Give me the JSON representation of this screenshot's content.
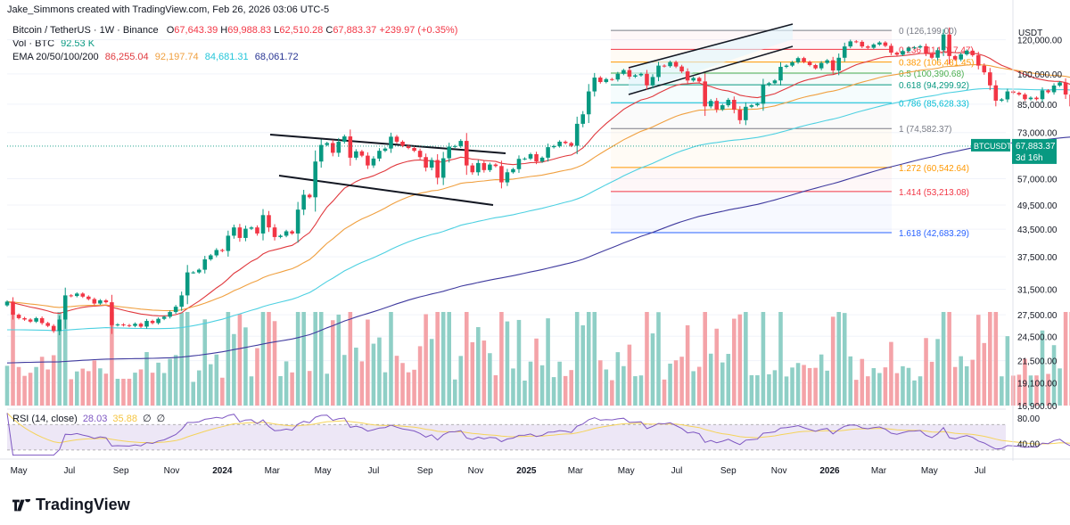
{
  "header": {
    "published_by": "Jake_Simmons created with TradingView.com, Feb 26, 2026 03:06 UTC-5"
  },
  "legend": {
    "symbol_line": "Bitcoin / TetherUS · 1W · Binance",
    "ohlc": {
      "o_label": "O",
      "o": "67,643.39",
      "h_label": "H",
      "h": "69,988.83",
      "l_label": "L",
      "l": "62,510.28",
      "c_label": "C",
      "c": "67,883.37",
      "change": "+239.97 (+0.35%)"
    },
    "vol_label": "Vol · BTC",
    "vol_value": "92.53 K",
    "ema_label": "EMA 20/50/100/200",
    "ema_values": [
      "86,255.04",
      "92,197.74",
      "84,681.31",
      "68,061.72"
    ]
  },
  "rsi": {
    "label": "RSI (14, close)",
    "value": "28.03",
    "ma_value": "35.88",
    "symbols": [
      "∅",
      "∅"
    ],
    "axis_labels": [
      "80.00",
      "40.00"
    ]
  },
  "price_axis": {
    "currency": "USDT",
    "ticks": [
      "120,000.00",
      "100,000.00",
      "85,000.00",
      "73,000.00",
      "57,000.00",
      "49,500.00",
      "43,500.00",
      "37,500.00",
      "31,500.00",
      "27,500.00",
      "24,500.00",
      "21,500.00",
      "19,100.00",
      "16,900.00"
    ],
    "last_label": "BTCUSDT",
    "last_price": "67,883.37",
    "countdown": "3d 16h"
  },
  "time_axis": [
    "May",
    "Jul",
    "Sep",
    "Nov",
    "2024",
    "Mar",
    "May",
    "Jul",
    "Sep",
    "Nov",
    "2025",
    "Mar",
    "May",
    "Jul",
    "Sep",
    "Nov",
    "2026",
    "Mar",
    "May",
    "Jul"
  ],
  "fibonacci": [
    {
      "label": "0 (126,199.00)",
      "price": 126199,
      "color": "#787b86"
    },
    {
      "label": "0.236 (114,017.47)",
      "price": 114017.47,
      "color": "#f23645"
    },
    {
      "label": "0.382 (106,481.45)",
      "price": 106481.45,
      "color": "#ff9800"
    },
    {
      "label": "0.5 (100,390.68)",
      "price": 100390.68,
      "color": "#4caf50"
    },
    {
      "label": "0.618 (94,299.92)",
      "price": 94299.92,
      "color": "#089981"
    },
    {
      "label": "0.786 (85,628.33)",
      "price": 85628.33,
      "color": "#00bcd4"
    },
    {
      "label": "1 (74,582.37)",
      "price": 74582.37,
      "color": "#787b86"
    },
    {
      "label": "1.272 (60,542.64)",
      "price": 60542.64,
      "color": "#ff9800"
    },
    {
      "label": "1.414 (53,213.08)",
      "price": 53213.08,
      "color": "#f23645"
    },
    {
      "label": "1.618 (42,683.29)",
      "price": 42683.29,
      "color": "#2962ff"
    }
  ],
  "colors": {
    "up": "#089981",
    "down": "#f23645",
    "vol_up": "#8fcfc6",
    "vol_down": "#f4a3a8",
    "ema20": "#e0393e",
    "ema50": "#f0a040",
    "ema100": "#4dd0e1",
    "ema200": "#3f3a9e",
    "rsi": "#7e57c2",
    "rsi_ma": "#f5d35a",
    "rsi_band": "#ede7f6"
  },
  "brand": "TradingView",
  "chart_data": {
    "type": "candlestick",
    "series": [
      {
        "name": "Bitcoin / TetherUS",
        "type": "candlestick",
        "x_start": "2023-04-17",
        "interval": "1W",
        "close": [
          29500,
          27500,
          27000,
          26800,
          26500,
          27000,
          26300,
          25900,
          25200,
          26800,
          30500,
          30400,
          30800,
          30300,
          29900,
          29200,
          29700,
          29400,
          26000,
          26100,
          26000,
          25900,
          26200,
          25800,
          26600,
          26300,
          26900,
          27200,
          27900,
          28700,
          30500,
          34500,
          34500,
          35000,
          37000,
          37800,
          38900,
          38700,
          42000,
          43900,
          41500,
          43600,
          43900,
          42500,
          46900,
          43900,
          41700,
          42000,
          43000,
          42500,
          48300,
          52300,
          51600,
          62500,
          68300,
          69000,
          65500,
          69500,
          71500,
          63800,
          66000,
          64500,
          61200,
          63500,
          66200,
          67000,
          71400,
          69500,
          68000,
          67200,
          66200,
          64000,
          60500,
          63000,
          57300,
          63600,
          67700,
          67900,
          69800,
          61200,
          59000,
          62000,
          59700,
          61500,
          61000,
          55900,
          59000,
          60000,
          63400,
          63500,
          65000,
          62500,
          63800,
          67500,
          67900,
          69500,
          69000,
          68000,
          76500,
          80500,
          91000,
          98000,
          95700,
          97200,
          97000,
          100000,
          102000,
          98500,
          99200,
          100000,
          94000,
          98300,
          104500,
          104200,
          106500,
          104000,
          101300,
          96500,
          97800,
          96000,
          84000,
          86500,
          82600,
          84500,
          87000,
          82500,
          78000,
          83800,
          84500,
          85200,
          94200,
          95100,
          96500,
          103800,
          104500,
          106400,
          108800,
          106600,
          104800,
          103000,
          106000,
          107500,
          101800,
          109000,
          115800,
          119000,
          118700,
          115800,
          115000,
          117000,
          118300,
          116200,
          112000,
          110800,
          113000,
          115000,
          115200,
          116000,
          111500,
          109000,
          113500,
          123500,
          110000,
          108000,
          111000,
          113200,
          110500,
          104500,
          100800,
          94000,
          86600,
          87200,
          91000,
          90300,
          89500,
          87300,
          88000,
          87300,
          91500,
          90600,
          93900,
          95500,
          89500,
          84000,
          78800,
          70000,
          69500,
          68200,
          67883
        ]
      }
    ],
    "y_scale": "log",
    "y_range": [
      16900,
      135000
    ],
    "x_range": [
      "2023-04-17",
      "2026-08-01"
    ],
    "patterns": [
      "descending channel (2024)",
      "ascending channel (2025)"
    ],
    "ema_periods": [
      20,
      50,
      100,
      200
    ],
    "rsi_range": [
      20,
      90
    ]
  }
}
